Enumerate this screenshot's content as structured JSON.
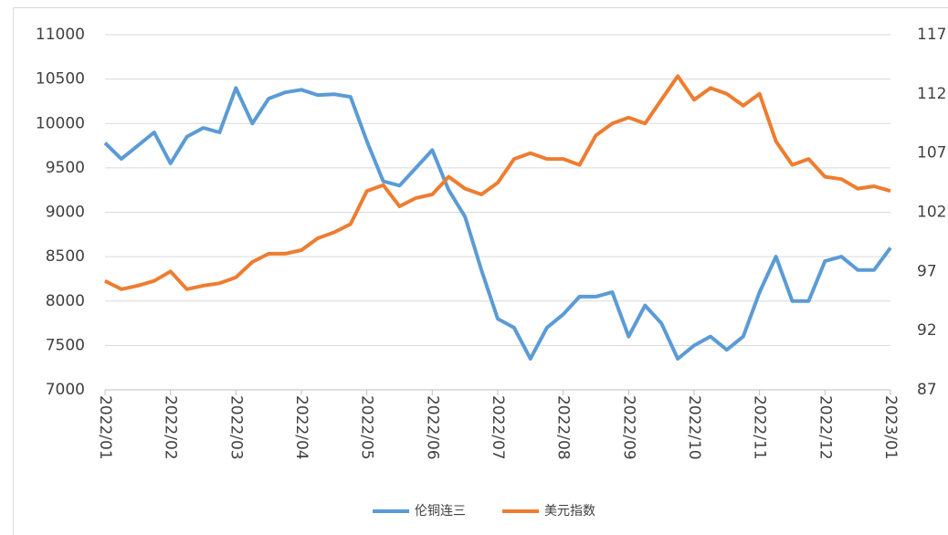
{
  "chart_data": {
    "type": "line",
    "categories": [
      "2022/01",
      null,
      null,
      null,
      "2022/02",
      null,
      null,
      null,
      "2022/03",
      null,
      null,
      null,
      "2022/04",
      null,
      null,
      null,
      "2022/05",
      null,
      null,
      null,
      "2022/06",
      null,
      null,
      null,
      "2022/07",
      null,
      null,
      null,
      "2022/08",
      null,
      null,
      null,
      "2022/09",
      null,
      null,
      null,
      "2022/10",
      null,
      null,
      null,
      "2022/11",
      null,
      null,
      null,
      "2022/12",
      null,
      null,
      null,
      "2023/01"
    ],
    "series": [
      {
        "name": "伦铜连三",
        "color": "#5b9bd5",
        "values": [
          9780,
          9600,
          9750,
          9900,
          9550,
          9850,
          9950,
          9900,
          10400,
          10000,
          10280,
          10350,
          10380,
          10320,
          10330,
          10300,
          9800,
          9350,
          9300,
          9500,
          9700,
          9250,
          8950,
          8350,
          7800,
          7700,
          7350,
          7700,
          7850,
          8050,
          8050,
          8100,
          7600,
          7950,
          7750,
          7350,
          7500,
          7600,
          7450,
          7600,
          8100,
          8500,
          8000,
          8000,
          8450,
          8500,
          8350,
          8350,
          8600
        ]
      },
      {
        "name": "美元指数",
        "color": "#ed7d31",
        "axis": "y2",
        "values": [
          96.2,
          95.5,
          95.8,
          96.2,
          97.0,
          95.5,
          95.8,
          96.0,
          96.5,
          97.8,
          98.5,
          98.5,
          98.8,
          99.8,
          100.3,
          101.0,
          103.8,
          104.3,
          102.5,
          103.2,
          103.5,
          105.0,
          104.0,
          103.5,
          104.5,
          106.5,
          107.0,
          106.5,
          106.5,
          106.0,
          108.5,
          109.5,
          110.0,
          109.5,
          111.5,
          113.5,
          111.5,
          112.5,
          112.0,
          111.0,
          112.0,
          108.0,
          106.0,
          106.5,
          105.0,
          104.8,
          104.0,
          104.2,
          103.8
        ]
      }
    ],
    "ylim": [
      7000,
      11000
    ],
    "yticks": [
      7000,
      7500,
      8000,
      8500,
      9000,
      9500,
      10000,
      10500,
      11000
    ],
    "y2lim": [
      87,
      117
    ],
    "y2ticks": [
      87,
      92,
      97,
      102,
      107,
      112,
      117
    ],
    "grid": true,
    "legend": "bottom"
  }
}
